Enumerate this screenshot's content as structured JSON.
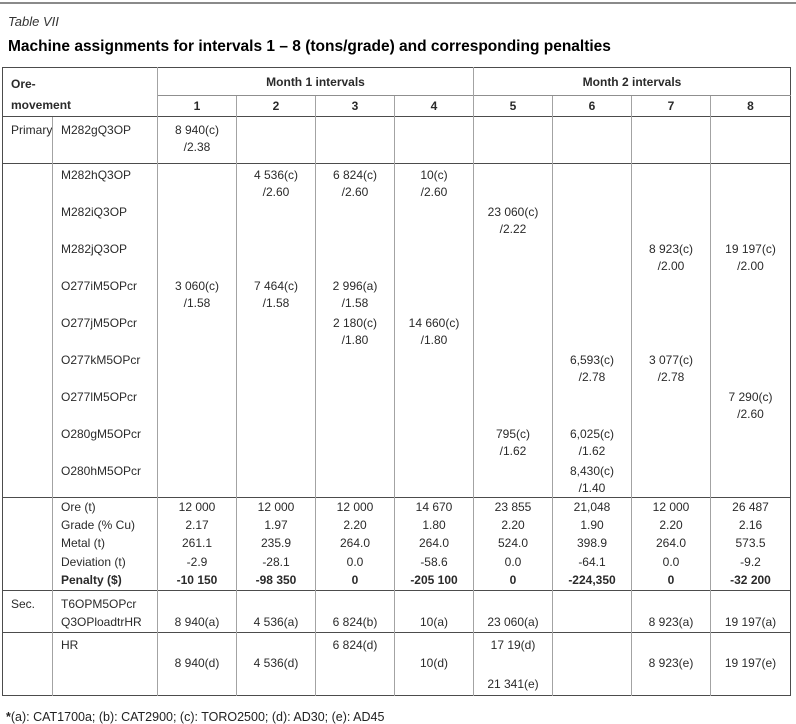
{
  "caption": {
    "label": "Table VII",
    "title": "Machine assignments for intervals 1 – 8 (tons/grade) and corresponding penalties"
  },
  "header": {
    "row_group_label_line1": "Ore-",
    "row_group_label_line2": "movement",
    "month1": "Month 1 intervals",
    "month2": "Month 2 intervals",
    "intervals": [
      "1",
      "2",
      "3",
      "4",
      "5",
      "6",
      "7",
      "8"
    ]
  },
  "primary_block": {
    "section_label": "Primary",
    "rows": [
      {
        "machine": "M282gQ3OP",
        "cells": {
          "1": [
            "8 940(c)",
            "/2.38"
          ]
        }
      }
    ]
  },
  "machine_block": {
    "rows": [
      {
        "machine": "M282hQ3OP",
        "cells": {
          "2": [
            "4 536(c)",
            "/2.60"
          ],
          "3": [
            "6 824(c)",
            "/2.60"
          ],
          "4": [
            "10(c)",
            "/2.60"
          ]
        }
      },
      {
        "machine": "M282iQ3OP",
        "cells": {
          "5": [
            "23 060(c)",
            "/2.22"
          ]
        }
      },
      {
        "machine": "M282jQ3OP",
        "cells": {
          "7": [
            "8 923(c)",
            "/2.00"
          ],
          "8": [
            "19 197(c)",
            "/2.00"
          ]
        }
      },
      {
        "machine": "O277iM5OPcr",
        "cells": {
          "1": [
            "3 060(c)",
            "/1.58"
          ],
          "2": [
            "7 464(c)",
            "/1.58"
          ],
          "3": [
            "2 996(a)",
            "/1.58"
          ]
        }
      },
      {
        "machine": "O277jM5OPcr",
        "cells": {
          "3": [
            "2 180(c)",
            "/1.80"
          ],
          "4": [
            "14 660(c)",
            "/1.80"
          ]
        }
      },
      {
        "machine": "O277kM5OPcr",
        "cells": {
          "6": [
            "6,593(c)",
            "/2.78"
          ],
          "7": [
            "3 077(c)",
            "/2.78"
          ]
        }
      },
      {
        "machine": "O277lM5OPcr",
        "cells": {
          "8": [
            "7 290(c)",
            "/2.60"
          ]
        }
      },
      {
        "machine": "O280gM5OPcr",
        "cells": {
          "5": [
            "795(c)",
            "/1.62"
          ],
          "6": [
            "6,025(c)",
            "/1.62"
          ]
        }
      },
      {
        "machine": "O280hM5OPcr",
        "cells": {
          "6": [
            "8,430(c)",
            "/1.40"
          ]
        }
      }
    ]
  },
  "summary_block": {
    "rows": [
      {
        "label": "Ore (t)",
        "bold": false,
        "values": [
          "12 000",
          "12 000",
          "12 000",
          "14 670",
          "23 855",
          "21,048",
          "12 000",
          "26 487"
        ]
      },
      {
        "label": "Grade (% Cu)",
        "bold": false,
        "values": [
          "2.17",
          "1.97",
          "2.20",
          "1.80",
          "2.20",
          "1.90",
          "2.20",
          "2.16"
        ]
      },
      {
        "label": "Metal (t)",
        "bold": false,
        "values": [
          "261.1",
          "235.9",
          "264.0",
          "264.0",
          "524.0",
          "398.9",
          "264.0",
          "573.5"
        ]
      },
      {
        "label": "Deviation (t)",
        "bold": false,
        "values": [
          "-2.9",
          "-28.1",
          "0.0",
          "-58.6",
          "0.0",
          "-64.1",
          "0.0",
          "-9.2"
        ]
      },
      {
        "label": "Penalty ($)",
        "bold": true,
        "values": [
          "-10 150",
          "-98 350",
          "0",
          "-205 100",
          "0",
          "-224,350",
          "0",
          "-32 200"
        ]
      }
    ]
  },
  "secondary_block": {
    "section_label": "Sec.",
    "lines": [
      {
        "machine": "T6OPM5OPcr",
        "values": [
          "",
          "",
          "",
          "",
          "",
          "",
          "",
          ""
        ]
      },
      {
        "machine": "Q3OPloadtrHR",
        "values": [
          "8 940(a)",
          "4 536(a)",
          "6 824(b)",
          "10(a)",
          "23 060(a)",
          "",
          "8 923(a)",
          "19 197(a)"
        ]
      }
    ]
  },
  "hr_block": {
    "lines": [
      {
        "machine": "HR",
        "values": [
          "",
          "",
          "6 824(d)",
          "",
          "17 19(d)",
          "",
          "",
          ""
        ]
      },
      {
        "machine": "",
        "values": [
          "8 940(d)",
          "4 536(d)",
          "",
          "10(d)",
          "",
          "",
          "8 923(e)",
          "19 197(e)"
        ]
      },
      {
        "machine": "",
        "values": [
          "",
          "",
          "",
          "",
          "21 341(e)",
          "",
          "",
          ""
        ]
      }
    ]
  },
  "footnote": {
    "star": "*",
    "text": "(a): CAT1700a; (b): CAT2900; (c): TORO2500; (d): AD30; (e): AD45"
  }
}
